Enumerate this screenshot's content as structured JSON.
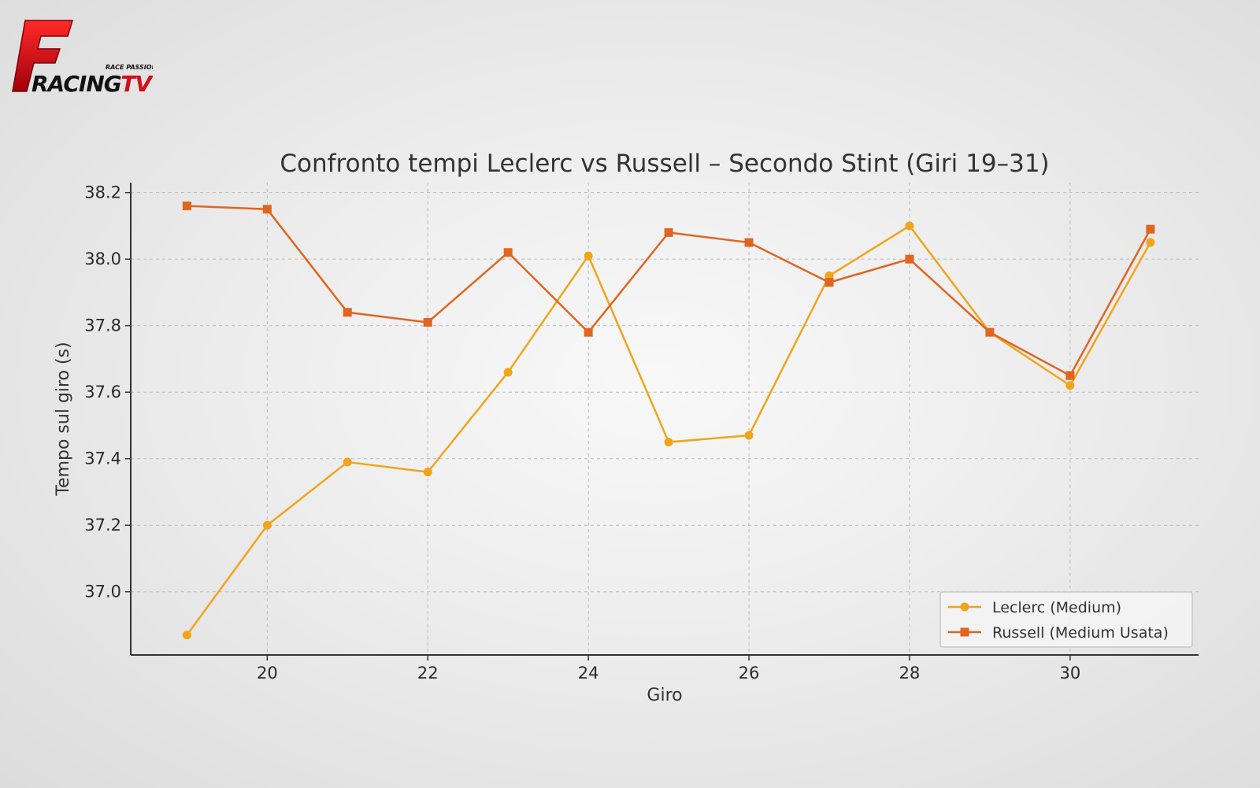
{
  "logo": {
    "tagline": "RACE PASSION",
    "wordmark": "RACINGTV",
    "letter": "F",
    "wordmark_main": "RACING",
    "wordmark_tv": "TV"
  },
  "colors": {
    "leclerc": "#F0A51A",
    "russell": "#E0651F",
    "brand_red": "#D0101C"
  },
  "chart_data": {
    "type": "line",
    "title": "Confronto tempi Leclerc vs Russell – Secondo Stint (Giri 19–31)",
    "xlabel": "Giro",
    "ylabel": "Tempo sul giro (s)",
    "x": [
      19,
      20,
      21,
      22,
      23,
      24,
      25,
      26,
      27,
      28,
      29,
      30,
      31
    ],
    "xlim": [
      18.3,
      31.6
    ],
    "ylim": [
      36.81,
      38.23
    ],
    "xticks": [
      20,
      22,
      24,
      26,
      28,
      30
    ],
    "yticks": [
      37.0,
      37.2,
      37.4,
      37.6,
      37.8,
      38.0,
      38.2
    ],
    "ytick_labels": [
      "37.0",
      "37.2",
      "37.4",
      "37.6",
      "37.8",
      "38.0",
      "38.2"
    ],
    "grid": true,
    "legend_position": "lower-right",
    "series": [
      {
        "name": "Leclerc (Medium)",
        "marker": "circle",
        "color": "#F0A51A",
        "values": [
          36.87,
          37.2,
          37.39,
          37.36,
          37.66,
          38.01,
          37.45,
          37.47,
          37.95,
          38.1,
          37.78,
          37.62,
          38.05
        ]
      },
      {
        "name": "Russell (Medium Usata)",
        "marker": "square",
        "color": "#E0651F",
        "values": [
          38.16,
          38.15,
          37.84,
          37.81,
          38.02,
          37.78,
          38.08,
          38.05,
          37.93,
          38.0,
          37.78,
          37.65,
          38.09
        ]
      }
    ]
  }
}
